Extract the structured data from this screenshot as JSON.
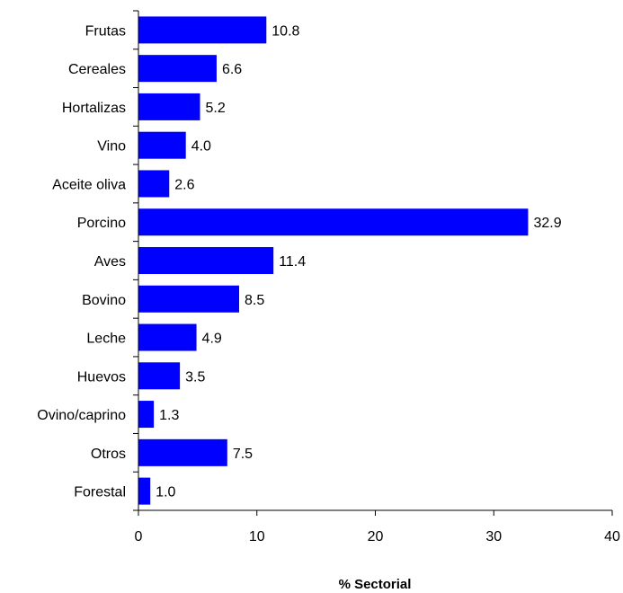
{
  "chart_data": {
    "type": "bar",
    "orientation": "horizontal",
    "categories": [
      "Frutas",
      "Cereales",
      "Hortalizas",
      "Vino",
      "Aceite oliva",
      "Porcino",
      "Aves",
      "Bovino",
      "Leche",
      "Huevos",
      "Ovino/caprino",
      "Otros",
      "Forestal"
    ],
    "values": [
      10.8,
      6.6,
      5.2,
      4.0,
      2.6,
      32.9,
      11.4,
      8.5,
      4.9,
      3.5,
      1.3,
      7.5,
      1.0
    ],
    "value_labels": [
      "10.8",
      "6.6",
      "5.2",
      "4.0",
      "2.6",
      "32.9",
      "11.4",
      "8.5",
      "4.9",
      "3.5",
      "1.3",
      "7.5",
      "1.0"
    ],
    "title": "",
    "xlabel": "% Sectorial",
    "ylabel": "",
    "xlim": [
      0,
      40
    ],
    "xticks": [
      0,
      10,
      20,
      30,
      40
    ],
    "grid": false,
    "legend": "none",
    "bar_color": "#0000ff"
  }
}
